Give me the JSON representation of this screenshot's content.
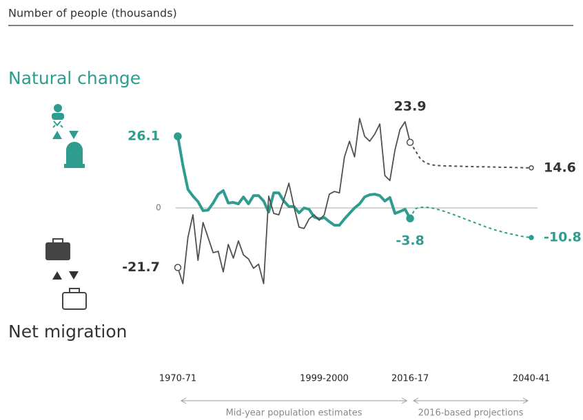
{
  "chart_data": {
    "type": "line",
    "title": "Number of people (thousands)",
    "categories": [
      "1970-71",
      null,
      null,
      null,
      null,
      null,
      null,
      null,
      null,
      null,
      null,
      null,
      null,
      null,
      null,
      null,
      null,
      null,
      null,
      null,
      null,
      null,
      null,
      null,
      null,
      null,
      null,
      null,
      null,
      "1999-2000",
      null,
      null,
      null,
      null,
      null,
      null,
      null,
      null,
      null,
      null,
      null,
      null,
      null,
      null,
      null,
      null,
      "2016-17",
      null,
      null,
      null,
      null,
      null,
      null,
      null,
      null,
      null,
      null,
      null,
      null,
      null,
      null,
      null,
      null,
      null,
      null,
      null,
      null,
      null,
      null,
      null,
      "2040-41"
    ],
    "series": [
      {
        "name": "Natural change",
        "color": "#2e9c8e",
        "values": [
          26.1,
          15.6,
          6.8,
          4.3,
          2.3,
          -1.0,
          -0.8,
          1.8,
          5.0,
          6.3,
          1.8,
          2.0,
          1.5,
          4.0,
          1.5,
          4.5,
          4.5,
          2.5,
          -1.5,
          5.5,
          5.5,
          2.5,
          0.5,
          0.5,
          -1.8,
          0,
          -0.5,
          -3.3,
          -4.0,
          -3.5,
          -5.0,
          -6.3,
          -6.3,
          -4.0,
          -2.0,
          0,
          1.5,
          4.0,
          4.8,
          5.0,
          4.5,
          2.5,
          3.8,
          -2.0,
          -1.3,
          -0.5,
          -3.8,
          -0.3,
          0.2,
          0.3,
          0.1,
          -0.3,
          -0.8,
          -1.4,
          -2.0,
          -2.7,
          -3.4,
          -4.1,
          -4.8,
          -5.5,
          -6.2,
          -6.9,
          -7.5,
          -8.1,
          -8.6,
          -9.1,
          -9.5,
          -9.9,
          -10.3,
          -10.6,
          -10.8
        ]
      },
      {
        "name": "Net migration",
        "color": "#505050",
        "values": [
          -21.7,
          -27.6,
          -10.8,
          -2.5,
          -19.1,
          -5.3,
          -10.8,
          -16.3,
          -15.8,
          -23.3,
          -13.3,
          -18.3,
          -12.0,
          -17.1,
          -18.6,
          -22.0,
          -20.5,
          -27.6,
          4.3,
          -2.0,
          -2.5,
          3.0,
          9.0,
          0.5,
          -7.0,
          -7.5,
          -4.0,
          -2.5,
          -4.5,
          -2.5,
          5.0,
          6.0,
          5.5,
          18.6,
          24.3,
          18.6,
          32.6,
          26.1,
          24.3,
          26.9,
          30.6,
          11.8,
          10.0,
          21.1,
          28.6,
          31.4,
          23.9,
          21.0,
          18.0,
          16.5,
          15.8,
          15.5,
          15.4,
          15.3,
          15.3,
          15.2,
          15.2,
          15.1,
          15.1,
          15.0,
          15.0,
          15.0,
          14.9,
          14.9,
          14.8,
          14.8,
          14.8,
          14.7,
          14.7,
          14.6,
          14.6
        ]
      }
    ],
    "ylim": [
      -35,
      35
    ],
    "yticks": [
      0
    ],
    "annotations": [
      {
        "text": "Mid-year population estimates",
        "from": "1970-71",
        "to": "2016-17"
      },
      {
        "text": "2016-based projections",
        "from": "2016-17",
        "to": "2040-41"
      }
    ]
  }
}
